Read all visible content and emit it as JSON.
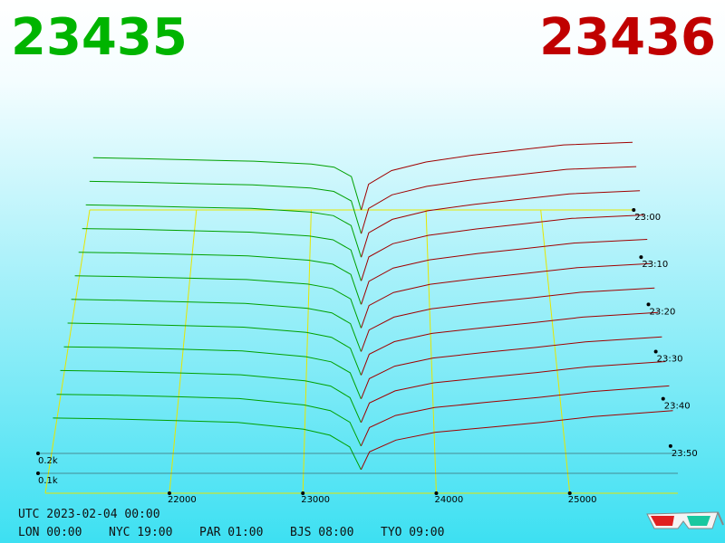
{
  "bid_price": "23435",
  "ask_price": "23436",
  "bid_color": "#00a000",
  "ask_color": "#a00000",
  "grid_color": "#e6e600",
  "price_axis": {
    "lim": [
      21070,
      25810
    ],
    "ticks": [
      22000,
      23000,
      24000,
      25000
    ]
  },
  "depth_axis": {
    "ticks": [
      {
        "value": 100,
        "label": "0.1k"
      },
      {
        "value": 200,
        "label": "0.2k"
      }
    ]
  },
  "time_axis": {
    "lim": [
      0,
      60
    ],
    "ticks": [
      {
        "value": 0,
        "label": "23:00"
      },
      {
        "value": 10,
        "label": "23:10"
      },
      {
        "value": 20,
        "label": "23:20"
      },
      {
        "value": 30,
        "label": "23:30"
      },
      {
        "value": 40,
        "label": "23:40"
      },
      {
        "value": 50,
        "label": "23:50"
      }
    ]
  },
  "bid_prices": [
    21100,
    21500,
    22000,
    22500,
    23000,
    23200,
    23350,
    23435
  ],
  "ask_prices": [
    23436,
    23500,
    23700,
    24000,
    24400,
    24800,
    25200,
    25800
  ],
  "snapshots": [
    {
      "minute": 0,
      "bids": [
        305,
        300,
        292,
        285,
        268,
        250,
        195,
        0
      ],
      "asks": [
        0,
        150,
        230,
        280,
        320,
        350,
        380,
        395
      ]
    },
    {
      "minute": 5,
      "bids": [
        301,
        296,
        288,
        281,
        262,
        243,
        188,
        0
      ],
      "asks": [
        0,
        145,
        223,
        272,
        310,
        340,
        370,
        386
      ]
    },
    {
      "minute": 10,
      "bids": [
        297,
        292,
        284,
        277,
        257,
        236,
        180,
        0
      ],
      "asks": [
        0,
        139,
        215,
        264,
        301,
        330,
        360,
        378
      ]
    },
    {
      "minute": 15,
      "bids": [
        293,
        289,
        281,
        273,
        251,
        230,
        173,
        0
      ],
      "asks": [
        0,
        134,
        208,
        255,
        291,
        320,
        350,
        369
      ]
    },
    {
      "minute": 20,
      "bids": [
        289,
        285,
        277,
        269,
        245,
        223,
        166,
        0
      ],
      "asks": [
        0,
        128,
        201,
        247,
        282,
        310,
        340,
        360
      ]
    },
    {
      "minute": 25,
      "bids": [
        285,
        281,
        273,
        265,
        240,
        216,
        159,
        0
      ],
      "asks": [
        0,
        123,
        194,
        239,
        272,
        300,
        330,
        352
      ]
    },
    {
      "minute": 30,
      "bids": [
        282,
        277,
        269,
        260,
        234,
        209,
        151,
        0
      ],
      "asks": [
        0,
        117,
        186,
        231,
        263,
        290,
        320,
        343
      ]
    },
    {
      "minute": 35,
      "bids": [
        278,
        273,
        265,
        256,
        228,
        202,
        144,
        0
      ],
      "asks": [
        0,
        112,
        179,
        223,
        253,
        280,
        310,
        335
      ]
    },
    {
      "minute": 40,
      "bids": [
        274,
        270,
        262,
        252,
        222,
        195,
        137,
        0
      ],
      "asks": [
        0,
        106,
        172,
        215,
        244,
        270,
        300,
        326
      ]
    },
    {
      "minute": 45,
      "bids": [
        270,
        266,
        258,
        248,
        217,
        189,
        129,
        0
      ],
      "asks": [
        0,
        101,
        164,
        206,
        234,
        260,
        290,
        317
      ]
    },
    {
      "minute": 50,
      "bids": [
        266,
        262,
        254,
        244,
        211,
        182,
        122,
        0
      ],
      "asks": [
        0,
        95,
        157,
        198,
        225,
        250,
        280,
        309
      ]
    },
    {
      "minute": 55,
      "bids": [
        262,
        258,
        250,
        240,
        205,
        175,
        115,
        0
      ],
      "asks": [
        0,
        90,
        150,
        190,
        215,
        240,
        270,
        300
      ]
    }
  ],
  "footer": {
    "utc": "UTC 2023-02-04 00:00",
    "zones": [
      "LON 00:00",
      "NYC 19:00",
      "PAR 01:00",
      "BJS 08:00",
      "TYO 09:00"
    ]
  }
}
